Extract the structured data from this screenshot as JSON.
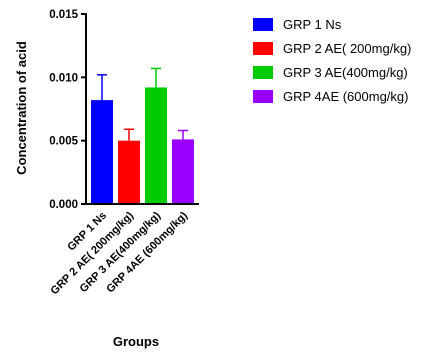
{
  "chart_data": {
    "type": "bar",
    "title": "",
    "xlabel": "Groups",
    "ylabel": "Concentration of acid",
    "ylim": [
      0,
      0.015
    ],
    "yticks": [
      "0.000",
      "0.005",
      "0.010",
      "0.015"
    ],
    "ytick_values": [
      0,
      0.005,
      0.01,
      0.015
    ],
    "categories": [
      "GRP 1 Ns",
      "GRP 2 AE( 200mg/kg)",
      "GRP 3 AE(400mg/kg)",
      "GRP 4AE (600mg/kg)"
    ],
    "values": [
      0.0082,
      0.005,
      0.0092,
      0.0051
    ],
    "errors": [
      0.002,
      0.0009,
      0.0015,
      0.0007
    ],
    "colors": [
      "#0000ff",
      "#ff0000",
      "#00cc00",
      "#9900ff"
    ],
    "legend": {
      "placement": "right",
      "entries": [
        "GRP 1 Ns",
        "GRP 2 AE( 200mg/kg)",
        "GRP 3 AE(400mg/kg)",
        "GRP 4AE (600mg/kg)"
      ]
    },
    "grid": false
  }
}
